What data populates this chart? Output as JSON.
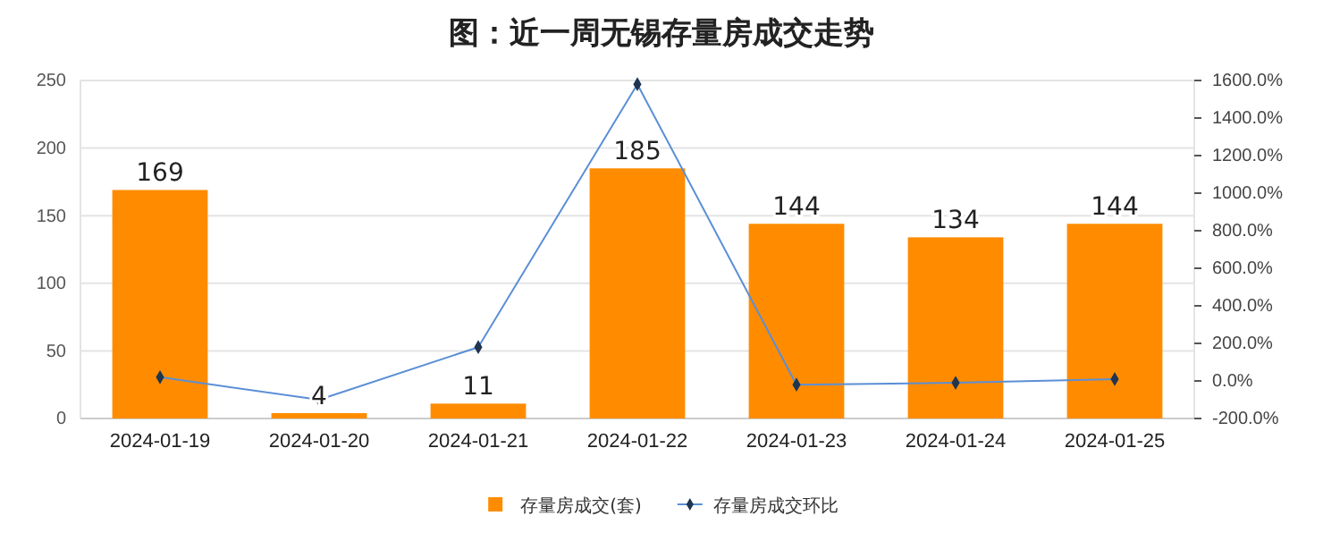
{
  "chart_data": {
    "type": "bar",
    "title": "图：近一周无锡存量房成交走势",
    "categories": [
      "2024-01-19",
      "2024-01-20",
      "2024-01-21",
      "2024-01-22",
      "2024-01-23",
      "2024-01-24",
      "2024-01-25"
    ],
    "series": [
      {
        "name": "存量房成交(套)",
        "color": "#ff8c00",
        "values": [
          169,
          4,
          11,
          185,
          144,
          134,
          144
        ],
        "value_labels": [
          "169",
          "4",
          "11",
          "185",
          "144",
          "134",
          "144"
        ]
      },
      {
        "name": "存量房成交环比",
        "type": "line",
        "axis": "y2",
        "color": "#5b8fd6",
        "marker": "diamond",
        "values": [
          20,
          -100,
          180,
          1580,
          -20,
          -10,
          10
        ]
      }
    ],
    "ylim": [
      0,
      250
    ],
    "yticks": [
      0,
      50,
      100,
      150,
      200,
      250
    ],
    "y2lim": [
      -200,
      1600
    ],
    "y2ticks": [
      {
        "value": -200,
        "label": "-200.0%"
      },
      {
        "value": 0,
        "label": "0.0%"
      },
      {
        "value": 200,
        "label": "200.0%"
      },
      {
        "value": 400,
        "label": "400.0%"
      },
      {
        "value": 600,
        "label": "600.0%"
      },
      {
        "value": 800,
        "label": "800.0%"
      },
      {
        "value": 1000,
        "label": "1000.0%"
      },
      {
        "value": 1200,
        "label": "1200.0%"
      },
      {
        "value": 1400,
        "label": "1400.0%"
      },
      {
        "value": 1600,
        "label": "1600.0%"
      }
    ],
    "grid": "y",
    "legend": "bottom"
  }
}
